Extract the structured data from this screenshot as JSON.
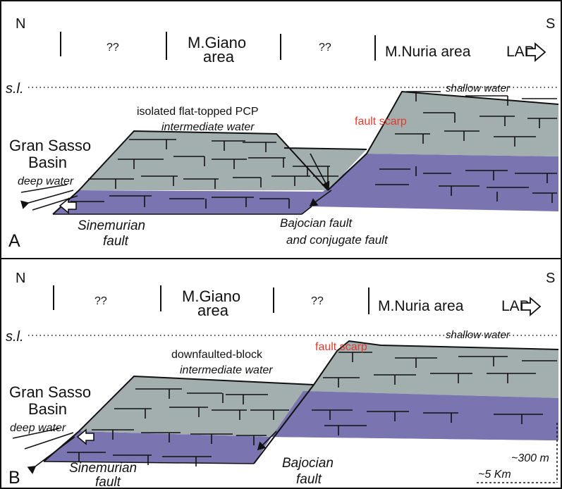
{
  "colors": {
    "grey_platform": "#a3afaf",
    "purple_basement": "#7a74b0",
    "red_label": "#e03a2f",
    "line": "#111111"
  },
  "panelA": {
    "letter": "A",
    "north": "N",
    "south": "S",
    "zones": [
      "??",
      "M.Giano",
      "area",
      "??",
      "M.Nuria area"
    ],
    "lap": "LAP",
    "sea_level": "s.l.",
    "shallow_water": "shallow water",
    "pcp_title": "isolated flat-topped PCP",
    "intermediate_water": "intermediate water",
    "fault_scarp": "fault scarp",
    "basin_line1": "Gran Sasso",
    "basin_line2": "Basin",
    "deep_water": "deep water",
    "sinemurian_line1": "Sinemurian",
    "sinemurian_line2": "fault",
    "bajocian_line1": "Bajocian fault",
    "bajocian_line2": "and conjugate fault"
  },
  "panelB": {
    "letter": "B",
    "north": "N",
    "south": "S",
    "zones": [
      "??",
      "M.Giano",
      "area",
      "??",
      "M.Nuria area"
    ],
    "lap": "LAP",
    "sea_level": "s.l.",
    "shallow_water": "shallow water",
    "block_title": "downfaulted-block",
    "intermediate_water": "intermediate water",
    "fault_scarp": "fault scarp",
    "basin_line1": "Gran Sasso",
    "basin_line2": "Basin",
    "deep_water": "deep water",
    "sinemurian_line1": "Sinemurian",
    "sinemurian_line2": "fault",
    "bajocian_line1": "Bajocian",
    "bajocian_line2": "fault",
    "scale_vertical": "~300 m",
    "scale_horizontal": "~5 Km"
  }
}
